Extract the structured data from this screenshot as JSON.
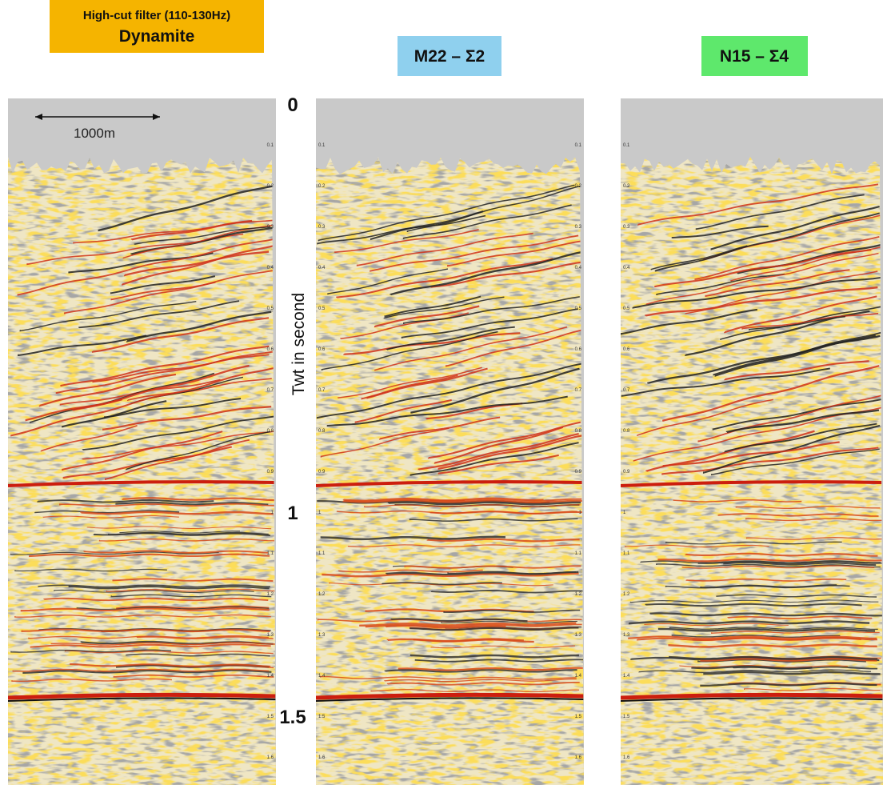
{
  "header": {
    "filter_note": "High-cut filter (110-130Hz)",
    "panels": [
      {
        "label": "Dynamite"
      },
      {
        "label": "M22 – Σ2"
      },
      {
        "label": "N15 – Σ4"
      }
    ]
  },
  "scale_bar": "1000m",
  "axis": {
    "label": "Twt in second",
    "major_ticks": [
      "0",
      "1",
      "1.5"
    ],
    "minor_ticks": [
      "0.1",
      "0.2",
      "0.3",
      "0.4",
      "0.5",
      "0.6",
      "0.7",
      "0.8",
      "0.9",
      "1",
      "1.1",
      "1.2",
      "1.3",
      "1.4",
      "1.5",
      "1.6"
    ]
  }
}
